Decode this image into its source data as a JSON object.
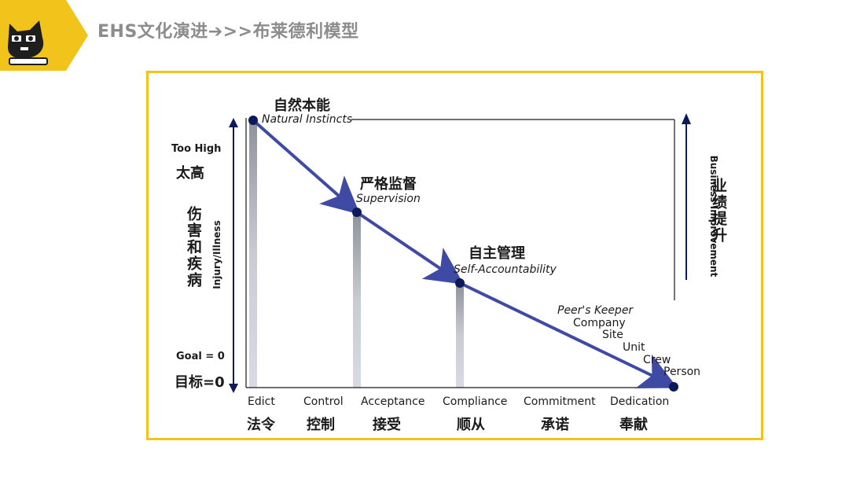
{
  "title": "EHS文化演进➔>>布莱德利模型",
  "stages": [
    {
      "cn": "自然本能",
      "en": "Natural Instincts"
    },
    {
      "cn": "严格监督",
      "en": "Supervision"
    },
    {
      "cn": "自主管理",
      "en": "Self-Accountability"
    }
  ],
  "keeper_list": [
    "Peer's Keeper",
    "Company",
    "Site",
    "Unit",
    "Crew",
    "Person"
  ],
  "left_axis": {
    "top_en": "Too High",
    "top_cn": "太高",
    "cn_label": "伤害和疾病",
    "en_label": "Injury/Illness",
    "bottom_en": "Goal = 0",
    "bottom_cn": "目标=0"
  },
  "right_axis": {
    "cn_label": "业绩提升",
    "en_label": "Business Improvement"
  },
  "bottom_labels": [
    {
      "en": "Edict",
      "cn": "法令"
    },
    {
      "en": "Control",
      "cn": "控制"
    },
    {
      "en": "Acceptance",
      "cn": "接受"
    },
    {
      "en": "Compliance",
      "cn": "顺从"
    },
    {
      "en": "Commitment",
      "cn": "承诺"
    },
    {
      "en": "Dedication",
      "cn": "奉献"
    }
  ],
  "colors": {
    "accent": "#f2c31a",
    "curve": "#3e4aa3",
    "node": "#0c1a5a",
    "bar": "#c4c7cf"
  }
}
